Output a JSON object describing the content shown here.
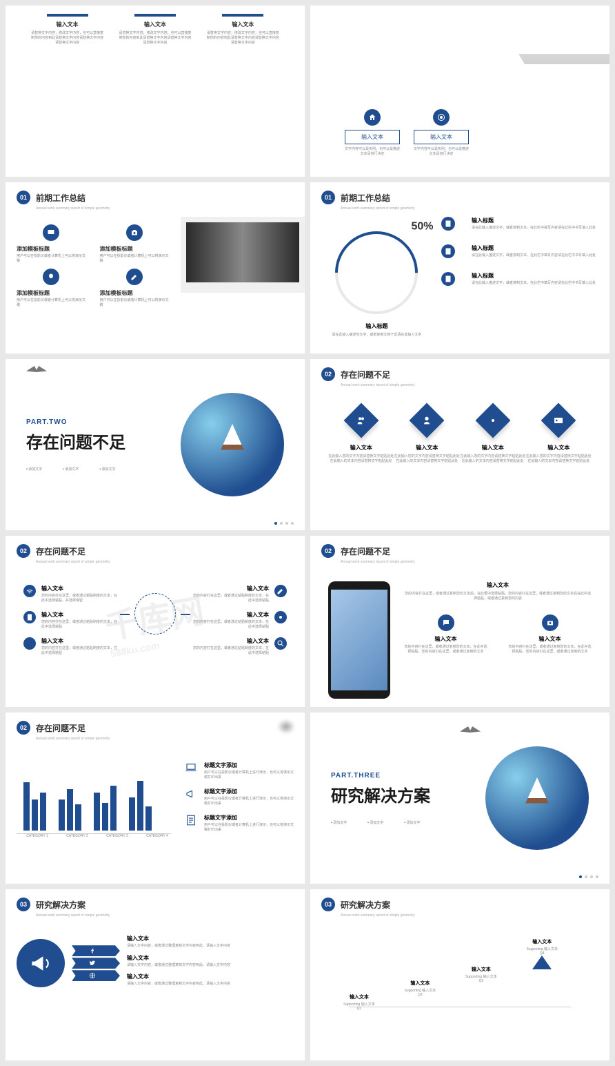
{
  "colors": {
    "primary": "#1f4d8f",
    "text": "#333",
    "muted": "#888",
    "bg": "#fff",
    "page_bg": "#e8e8e8"
  },
  "watermark": "千库网",
  "watermark_sub": "588ku.com",
  "s1": {
    "items": [
      {
        "title": "输入文本",
        "body": "请替换文字内容，修改文字内容，也可以直接复制你的内容到此请替换文字内容请替换文字内容请替换文字内容"
      },
      {
        "title": "输入文本",
        "body": "请替换文字内容，修改文字内容，也可以直接复制你的内容到此请替换文字内容请替换文字内容请替换文字内容"
      },
      {
        "title": "输入文本",
        "body": "请替换文字内容，修改文字内容，也可以直接复制你的内容到此请替换文字内容请替换文字内容请替换文字内容"
      }
    ]
  },
  "s2": {
    "boxes": [
      {
        "label": "输入文本",
        "sub": "文字内容可以是实例，也可以是描述文本请自行决定"
      },
      {
        "label": "输入文本",
        "sub": "文字内容可以是实例，也可以是描述文本请自行决定"
      }
    ]
  },
  "s3": {
    "num": "01",
    "title": "前期工作总结",
    "sub": "Annual work summary report of simple geometry",
    "items": [
      {
        "title": "添加模板标题",
        "body": "用户可以在投影仪或者计算机上可以将演示文稿"
      },
      {
        "title": "添加模板标题",
        "body": "用户可以在投影仪或者计算机上可以将演示文稿"
      },
      {
        "title": "添加模板标题",
        "body": "用户可以在投影仪或者计算机上可以将演示文稿"
      },
      {
        "title": "添加模板标题",
        "body": "用户可以在投影仪或者计算机上可以将演示文稿"
      }
    ]
  },
  "s4": {
    "num": "01",
    "title": "前期工作总结",
    "sub": "Annual work summary report of simple geometry",
    "percent": "50%",
    "arc_title": "输入标题",
    "arc_sub": "请在此输入描述性文字，或者复制文档于此请在此输入文字",
    "items": [
      {
        "title": "输入标题",
        "body": "请在此输入描述文字，或者复制文本，在此栏中填写内容请在此栏中书写填入此处"
      },
      {
        "title": "输入标题",
        "body": "请在此输入描述文字，或者复制文本，在此栏中填写内容请在此栏中书写填入此处"
      },
      {
        "title": "输入标题",
        "body": "请在此输入描述文字，或者复制文本，在此栏中填写内容请在此栏中书写填入此处"
      }
    ]
  },
  "s5": {
    "part": "PART.TWO",
    "title": "存在问题不足",
    "dots": [
      "添加文字",
      "添加文字",
      "添加文字"
    ]
  },
  "s6": {
    "num": "02",
    "title": "存在问题不足",
    "sub": "Annual work summary report of simple geometry",
    "items": [
      {
        "title": "输入文本",
        "body": "在此输入您的文字内容请替换文字粘贴此处在此输入的文本内容请替换文字粘贴此处"
      },
      {
        "title": "输入文本",
        "body": "在此输入您的文字内容请替换文字粘贴此处在此输入的文本内容请替换文字粘贴此处"
      },
      {
        "title": "输入文本",
        "body": "在此输入您的文字内容请替换文字粘贴此处在此输入的文本内容请替换文字粘贴此处"
      },
      {
        "title": "输入文本",
        "body": "在此输入您的文字内容请替换文字粘贴此处在此输入的文本内容请替换文字粘贴此处"
      }
    ]
  },
  "s7": {
    "num": "02",
    "title": "存在问题不足",
    "sub": "Annual work summary report of simple geometry",
    "left": [
      {
        "title": "输入文本",
        "body": "您的内容打在这里，或者通过粘贴制度的文本，在此中选择粘贴，并选择保留"
      },
      {
        "title": "输入文本",
        "body": "您的内容打在这里，或者通过粘贴制度的文本，在此中选择粘贴"
      },
      {
        "title": "输入文本",
        "body": "您的内容打在这里，或者通过粘贴制度的文本，在此中选择粘贴"
      }
    ],
    "right": [
      {
        "title": "输入文本",
        "body": "您的内容打在这里，或者通过粘贴制度的文本，在此中选择粘贴"
      },
      {
        "title": "输入文本",
        "body": "您的内容打在这里，或者通过粘贴制度的文本，在此中选择粘贴"
      },
      {
        "title": "输入文本",
        "body": "您的内容打在这里，或者通过粘贴制度的文本，在此中选择粘贴"
      }
    ]
  },
  "s8": {
    "num": "02",
    "title": "存在问题不足",
    "sub": "Annual work summary report of simple geometry",
    "top": {
      "title": "输入文本",
      "body": "您的内容打在这里，或者通过复制您的文本后，在此框中选择粘贴。您的内容打在这里，或者通过复制您的文本后在此中选择粘贴，或者通过复制您的内容"
    },
    "bot": [
      {
        "title": "输入文本",
        "body": "您的内容打在这里，或者通过复制您的文本，在此中选择粘贴，您的内容打在这里，或者通过复制的文本"
      },
      {
        "title": "输入文本",
        "body": "您的内容打在这里，或者通过复制您的文本，在此中选择粘贴，您的内容打在这里，或者通过复制的文本"
      }
    ]
  },
  "s9": {
    "num": "02",
    "title": "存在问题不足",
    "sub": "Annual work summary report of simple geometry",
    "chart": {
      "categories": [
        "CATEGORY 1",
        "CATEGORY 2",
        "CATEGORY 3",
        "CATEGORY 4"
      ],
      "series": [
        [
          70,
          45,
          55
        ],
        [
          45,
          60,
          38
        ],
        [
          55,
          40,
          65
        ],
        [
          48,
          72,
          35
        ]
      ],
      "bar_color": "#1f4d8f",
      "max": 100
    },
    "legend": [
      {
        "title": "标题文字添加",
        "body": "用户可以在投影仪或者计算机上进行演示，也可以将演示文稿打印出来"
      },
      {
        "title": "标题文字添加",
        "body": "用户可以在投影仪或者计算机上进行演示，也可以将演示文稿打印出来"
      },
      {
        "title": "标题文字添加",
        "body": "用户可以在投影仪或者计算机上进行演示，也可以将演示文稿打印出来"
      }
    ]
  },
  "s10": {
    "part": "PART.THREE",
    "title": "研究解决方案",
    "dots": [
      "添加文字",
      "添加文字",
      "添加文字"
    ]
  },
  "s11": {
    "num": "03",
    "title": "研究解决方案",
    "sub": "Annual work summary report of simple geometry",
    "items": [
      {
        "title": "输入文本",
        "body": "请输入文字内容，或者通过整理复制文字内容到此，请输入文字内容"
      },
      {
        "title": "输入文本",
        "body": "请输入文字内容，或者通过整理复制文字内容到此，请输入文字内容"
      },
      {
        "title": "输入文本",
        "body": "请输入文字内容，或者通过整理复制文字内容到此，请输入文字内容"
      }
    ]
  },
  "s12": {
    "num": "03",
    "title": "研究解决方案",
    "sub": "Annual work summary report of simple geometry",
    "steps": [
      {
        "q": "Q1",
        "title": "输入文本",
        "sub": "Supporting 输入文本"
      },
      {
        "q": "Q2",
        "title": "输入文本",
        "sub": "Supporting 输入文本"
      },
      {
        "q": "Q3",
        "title": "输入文本",
        "sub": "Supporting 输入文本"
      },
      {
        "q": "Q4",
        "title": "输入文本",
        "sub": "Supporting 输入文本"
      }
    ]
  }
}
